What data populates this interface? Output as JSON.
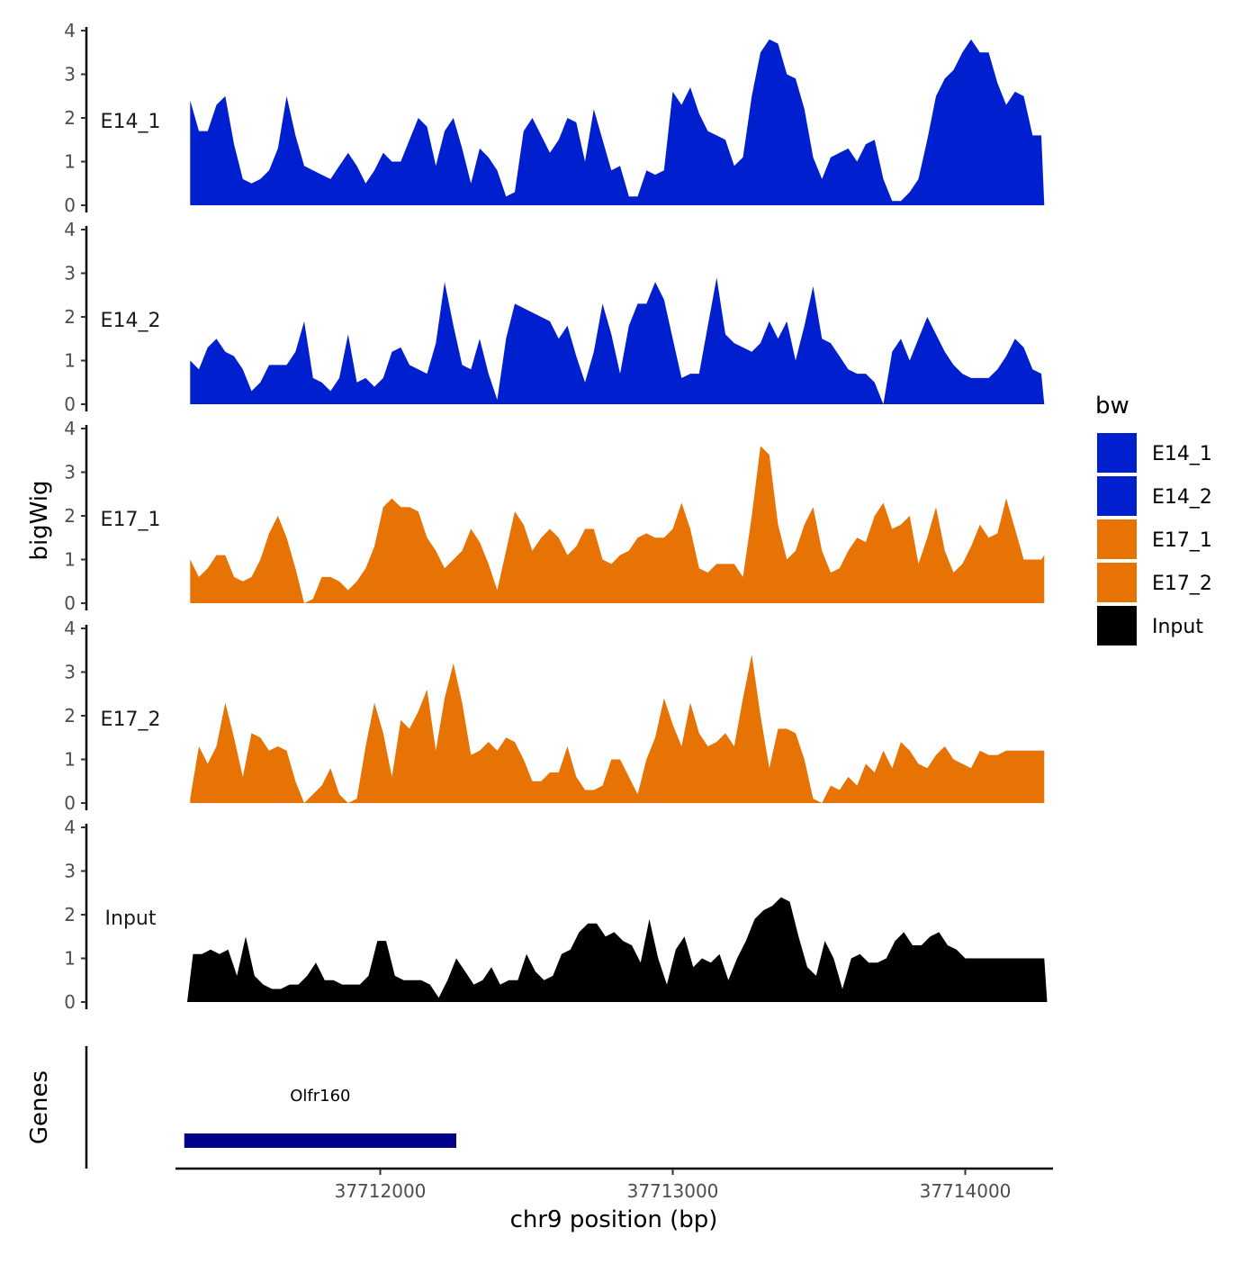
{
  "chart_data": {
    "type": "area",
    "title": "",
    "ylabel": "bigWig",
    "xlabel": "chr9 position (bp)",
    "ylim": [
      0,
      4
    ],
    "y_ticks": [
      0,
      1,
      2,
      3,
      4
    ],
    "xlim": [
      37711300,
      37714300
    ],
    "x_ticks": [
      37712000,
      37713000,
      37714000
    ],
    "x_tick_labels": [
      "37712000",
      "37713000",
      "37714000"
    ],
    "legend": {
      "title": "bw",
      "placement": "right",
      "entries": [
        {
          "label": "E14_1",
          "color": "#0020D0"
        },
        {
          "label": "E14_2",
          "color": "#0020D0"
        },
        {
          "label": "E17_1",
          "color": "#E87305"
        },
        {
          "label": "E17_2",
          "color": "#E87305"
        },
        {
          "label": "Input",
          "color": "#000000"
        }
      ]
    },
    "series": [
      {
        "name": "E14_1",
        "color": "#0020D0",
        "x": [
          37711350,
          37711380,
          37711410,
          37711440,
          37711470,
          37711500,
          37711530,
          37711560,
          37711590,
          37711620,
          37711650,
          37711680,
          37711710,
          37711740,
          37711770,
          37711800,
          37711830,
          37711860,
          37711890,
          37711920,
          37711950,
          37711980,
          37712010,
          37712040,
          37712070,
          37712100,
          37712130,
          37712160,
          37712190,
          37712220,
          37712250,
          37712280,
          37712310,
          37712340,
          37712370,
          37712400,
          37712430,
          37712460,
          37712490,
          37712520,
          37712550,
          37712580,
          37712610,
          37712640,
          37712670,
          37712700,
          37712730,
          37712760,
          37712790,
          37712820,
          37712850,
          37712880,
          37712910,
          37712940,
          37712970,
          37713000,
          37713030,
          37713060,
          37713090,
          37713120,
          37713150,
          37713180,
          37713210,
          37713240,
          37713270,
          37713300,
          37713330,
          37713360,
          37713390,
          37713420,
          37713450,
          37713480,
          37713510,
          37713540,
          37713570,
          37713600,
          37713630,
          37713660,
          37713690,
          37713720,
          37713750,
          37713780,
          37713810,
          37713840,
          37713870,
          37713900,
          37713930,
          37713960,
          37713990,
          37714020,
          37714050,
          37714080,
          37714110,
          37714140,
          37714170,
          37714200,
          37714230,
          37714260,
          37714270
        ],
        "values": [
          2.4,
          1.7,
          1.7,
          2.3,
          2.5,
          1.4,
          0.6,
          0.5,
          0.6,
          0.8,
          1.3,
          2.5,
          1.6,
          0.9,
          0.8,
          0.7,
          0.6,
          0.9,
          1.2,
          0.9,
          0.5,
          0.8,
          1.2,
          1.0,
          1.0,
          1.5,
          2.0,
          1.8,
          0.9,
          1.7,
          2.0,
          1.3,
          0.5,
          1.3,
          1.1,
          0.8,
          0.2,
          0.3,
          1.7,
          2.0,
          1.6,
          1.2,
          1.5,
          2.0,
          1.9,
          1.0,
          2.2,
          1.5,
          0.8,
          0.9,
          0.2,
          0.2,
          0.8,
          0.7,
          0.8,
          2.6,
          2.3,
          2.7,
          2.1,
          1.7,
          1.6,
          1.5,
          0.9,
          1.1,
          2.5,
          3.5,
          3.8,
          3.7,
          3.0,
          2.9,
          2.2,
          1.1,
          0.6,
          1.1,
          1.2,
          1.3,
          1.0,
          1.4,
          1.5,
          0.6,
          0.1,
          0.1,
          0.3,
          0.6,
          1.5,
          2.5,
          2.9,
          3.1,
          3.5,
          3.8,
          3.5,
          3.5,
          2.8,
          2.3,
          2.6,
          2.5,
          1.6,
          1.6,
          0.0
        ]
      },
      {
        "name": "E14_2",
        "color": "#0020D0",
        "x": [
          37711350,
          37711380,
          37711410,
          37711440,
          37711470,
          37711500,
          37711530,
          37711560,
          37711590,
          37711620,
          37711650,
          37711680,
          37711710,
          37711740,
          37711770,
          37711800,
          37711830,
          37711860,
          37711890,
          37711920,
          37711950,
          37711980,
          37712010,
          37712040,
          37712070,
          37712100,
          37712130,
          37712160,
          37712190,
          37712220,
          37712250,
          37712280,
          37712310,
          37712340,
          37712370,
          37712400,
          37712430,
          37712460,
          37712490,
          37712520,
          37712550,
          37712580,
          37712610,
          37712640,
          37712670,
          37712700,
          37712730,
          37712760,
          37712790,
          37712820,
          37712850,
          37712880,
          37712910,
          37712940,
          37712970,
          37713000,
          37713030,
          37713060,
          37713090,
          37713120,
          37713150,
          37713180,
          37713210,
          37713240,
          37713270,
          37713300,
          37713330,
          37713360,
          37713390,
          37713420,
          37713450,
          37713480,
          37713510,
          37713540,
          37713570,
          37713600,
          37713630,
          37713660,
          37713690,
          37713720,
          37713750,
          37713780,
          37713810,
          37713840,
          37713870,
          37713900,
          37713930,
          37713960,
          37713990,
          37714020,
          37714050,
          37714080,
          37714110,
          37714140,
          37714170,
          37714200,
          37714230,
          37714260,
          37714270
        ],
        "values": [
          1.0,
          0.8,
          1.3,
          1.5,
          1.2,
          1.1,
          0.8,
          0.3,
          0.5,
          0.9,
          0.9,
          0.9,
          1.2,
          1.9,
          0.6,
          0.5,
          0.3,
          0.6,
          1.6,
          0.5,
          0.6,
          0.4,
          0.6,
          1.2,
          1.3,
          0.9,
          0.8,
          0.7,
          1.4,
          2.8,
          1.8,
          0.9,
          0.8,
          1.5,
          0.7,
          0.1,
          1.5,
          2.3,
          2.2,
          2.1,
          2.0,
          1.9,
          1.5,
          1.8,
          1.1,
          0.5,
          1.2,
          2.3,
          1.6,
          0.7,
          1.8,
          2.3,
          2.3,
          2.8,
          2.4,
          1.5,
          0.6,
          0.7,
          0.7,
          1.8,
          2.9,
          1.6,
          1.4,
          1.3,
          1.2,
          1.4,
          1.9,
          1.5,
          1.9,
          1.0,
          1.8,
          2.7,
          1.5,
          1.4,
          1.1,
          0.8,
          0.7,
          0.7,
          0.5,
          0.0,
          1.2,
          1.5,
          1.0,
          1.5,
          2.0,
          1.6,
          1.2,
          0.9,
          0.7,
          0.6,
          0.6,
          0.6,
          0.8,
          1.1,
          1.5,
          1.3,
          0.8,
          0.7,
          0.0
        ]
      },
      {
        "name": "E17_1",
        "color": "#E87305",
        "x": [
          37711350,
          37711380,
          37711410,
          37711440,
          37711470,
          37711500,
          37711530,
          37711560,
          37711590,
          37711620,
          37711650,
          37711680,
          37711710,
          37711740,
          37711770,
          37711800,
          37711830,
          37711860,
          37711890,
          37711920,
          37711950,
          37711980,
          37712010,
          37712040,
          37712070,
          37712100,
          37712130,
          37712160,
          37712190,
          37712220,
          37712250,
          37712280,
          37712310,
          37712340,
          37712370,
          37712400,
          37712430,
          37712460,
          37712490,
          37712520,
          37712550,
          37712580,
          37712610,
          37712640,
          37712670,
          37712700,
          37712730,
          37712760,
          37712790,
          37712820,
          37712850,
          37712880,
          37712910,
          37712940,
          37712970,
          37713000,
          37713030,
          37713060,
          37713090,
          37713120,
          37713150,
          37713180,
          37713210,
          37713240,
          37713270,
          37713300,
          37713330,
          37713360,
          37713390,
          37713420,
          37713450,
          37713480,
          37713510,
          37713540,
          37713570,
          37713600,
          37713630,
          37713660,
          37713690,
          37713720,
          37713750,
          37713780,
          37713810,
          37713840,
          37713870,
          37713900,
          37713930,
          37713960,
          37713990,
          37714020,
          37714050,
          37714080,
          37714110,
          37714140,
          37714170,
          37714200,
          37714230,
          37714260,
          37714270
        ],
        "values": [
          1.0,
          0.6,
          0.8,
          1.1,
          1.1,
          0.6,
          0.5,
          0.6,
          1.0,
          1.6,
          2.0,
          1.5,
          0.8,
          0.0,
          0.1,
          0.6,
          0.6,
          0.5,
          0.3,
          0.5,
          0.8,
          1.3,
          2.2,
          2.4,
          2.2,
          2.2,
          2.1,
          1.5,
          1.2,
          0.8,
          1.0,
          1.2,
          1.7,
          1.4,
          0.9,
          0.3,
          1.2,
          2.1,
          1.8,
          1.2,
          1.5,
          1.7,
          1.5,
          1.1,
          1.3,
          1.7,
          1.7,
          1.0,
          0.9,
          1.1,
          1.2,
          1.5,
          1.6,
          1.5,
          1.5,
          1.7,
          2.3,
          1.7,
          0.8,
          0.7,
          0.9,
          0.9,
          0.9,
          0.6,
          2.0,
          3.6,
          3.4,
          1.8,
          1.0,
          1.2,
          1.8,
          2.2,
          1.2,
          0.7,
          0.8,
          1.2,
          1.5,
          1.4,
          2.0,
          2.3,
          1.7,
          1.8,
          2.0,
          0.9,
          1.5,
          2.2,
          1.2,
          0.7,
          0.9,
          1.3,
          1.8,
          1.5,
          1.6,
          2.4,
          1.7,
          1.0,
          1.0,
          1.0,
          1.1
        ]
      },
      {
        "name": "E17_2",
        "color": "#E87305",
        "x": [
          37711350,
          37711380,
          37711410,
          37711440,
          37711470,
          37711500,
          37711530,
          37711560,
          37711590,
          37711620,
          37711650,
          37711680,
          37711710,
          37711740,
          37711770,
          37711800,
          37711830,
          37711860,
          37711890,
          37711920,
          37711950,
          37711980,
          37712010,
          37712040,
          37712070,
          37712100,
          37712130,
          37712160,
          37712190,
          37712220,
          37712250,
          37712280,
          37712310,
          37712340,
          37712370,
          37712400,
          37712430,
          37712460,
          37712490,
          37712520,
          37712550,
          37712580,
          37712610,
          37712640,
          37712670,
          37712700,
          37712730,
          37712760,
          37712790,
          37712820,
          37712850,
          37712880,
          37712910,
          37712940,
          37712970,
          37713000,
          37713030,
          37713060,
          37713090,
          37713120,
          37713150,
          37713180,
          37713210,
          37713240,
          37713270,
          37713300,
          37713330,
          37713360,
          37713390,
          37713420,
          37713450,
          37713480,
          37713510,
          37713540,
          37713570,
          37713600,
          37713630,
          37713660,
          37713690,
          37713720,
          37713750,
          37713780,
          37713810,
          37713840,
          37713870,
          37713900,
          37713930,
          37713960,
          37713990,
          37714020,
          37714050,
          37714080,
          37714110,
          37714140,
          37714170,
          37714200,
          37714230,
          37714260,
          37714270
        ],
        "values": [
          0.1,
          1.3,
          0.9,
          1.3,
          2.3,
          1.5,
          0.6,
          1.6,
          1.5,
          1.2,
          1.3,
          1.2,
          0.5,
          0.0,
          0.2,
          0.4,
          0.8,
          0.2,
          0.0,
          0.1,
          1.3,
          2.3,
          1.6,
          0.6,
          1.9,
          1.7,
          2.1,
          2.6,
          1.2,
          2.4,
          3.2,
          2.3,
          1.1,
          1.2,
          1.4,
          1.2,
          1.5,
          1.4,
          1.0,
          0.5,
          0.5,
          0.7,
          0.7,
          1.3,
          0.6,
          0.3,
          0.3,
          0.4,
          1.0,
          1.0,
          0.6,
          0.2,
          1.0,
          1.5,
          2.4,
          1.8,
          1.3,
          2.3,
          1.6,
          1.3,
          1.4,
          1.6,
          1.3,
          2.4,
          3.4,
          2.0,
          0.8,
          1.7,
          1.7,
          1.6,
          1.0,
          0.1,
          0.0,
          0.4,
          0.3,
          0.6,
          0.4,
          0.9,
          0.7,
          1.2,
          0.8,
          1.4,
          1.2,
          0.9,
          0.8,
          1.1,
          1.3,
          1.0,
          0.9,
          0.8,
          1.2,
          1.1,
          1.1,
          1.2,
          1.2,
          1.2,
          1.2,
          1.2,
          1.2
        ]
      },
      {
        "name": "Input",
        "color": "#000000",
        "x": [
          37711340,
          37711360,
          37711390,
          37711420,
          37711450,
          37711480,
          37711510,
          37711540,
          37711570,
          37711600,
          37711630,
          37711660,
          37711690,
          37711720,
          37711750,
          37711780,
          37711810,
          37711840,
          37711870,
          37711900,
          37711930,
          37711960,
          37711990,
          37712020,
          37712050,
          37712080,
          37712110,
          37712140,
          37712170,
          37712200,
          37712230,
          37712260,
          37712290,
          37712320,
          37712350,
          37712380,
          37712410,
          37712440,
          37712470,
          37712500,
          37712530,
          37712560,
          37712590,
          37712620,
          37712650,
          37712680,
          37712710,
          37712740,
          37712770,
          37712800,
          37712830,
          37712860,
          37712890,
          37712920,
          37712950,
          37712980,
          37713010,
          37713040,
          37713070,
          37713100,
          37713130,
          37713160,
          37713190,
          37713220,
          37713250,
          37713280,
          37713310,
          37713340,
          37713370,
          37713400,
          37713430,
          37713460,
          37713490,
          37713520,
          37713550,
          37713580,
          37713610,
          37713640,
          37713670,
          37713700,
          37713730,
          37713760,
          37713790,
          37713820,
          37713850,
          37713880,
          37713910,
          37713940,
          37713970,
          37714000,
          37714030,
          37714060,
          37714090,
          37714120,
          37714150,
          37714180,
          37714210,
          37714240,
          37714270,
          37714280
        ],
        "values": [
          0.0,
          1.1,
          1.1,
          1.2,
          1.1,
          1.2,
          0.6,
          1.5,
          0.6,
          0.4,
          0.3,
          0.3,
          0.4,
          0.4,
          0.6,
          0.9,
          0.5,
          0.5,
          0.4,
          0.4,
          0.4,
          0.6,
          1.4,
          1.4,
          0.6,
          0.5,
          0.5,
          0.5,
          0.4,
          0.1,
          0.5,
          1.0,
          0.7,
          0.4,
          0.5,
          0.8,
          0.4,
          0.5,
          0.5,
          1.1,
          0.7,
          0.5,
          0.6,
          1.1,
          1.2,
          1.6,
          1.8,
          1.8,
          1.5,
          1.6,
          1.4,
          1.3,
          0.9,
          1.9,
          1.0,
          0.4,
          1.2,
          1.5,
          0.8,
          1.0,
          0.9,
          1.1,
          0.5,
          1.0,
          1.4,
          1.9,
          2.1,
          2.2,
          2.4,
          2.3,
          1.5,
          0.8,
          0.6,
          1.4,
          1.0,
          0.3,
          1.0,
          1.1,
          0.9,
          0.9,
          1.0,
          1.4,
          1.6,
          1.3,
          1.3,
          1.5,
          1.6,
          1.3,
          1.2,
          1.0,
          1.0,
          1.0,
          1.0,
          1.0,
          1.0,
          1.0,
          1.0,
          1.0,
          1.0,
          0.0
        ]
      }
    ],
    "genes_track": {
      "label": "Genes",
      "genes": [
        {
          "name": "Olfr160",
          "start": 37711330,
          "end": 37712260,
          "color": "#00008B"
        }
      ]
    }
  }
}
